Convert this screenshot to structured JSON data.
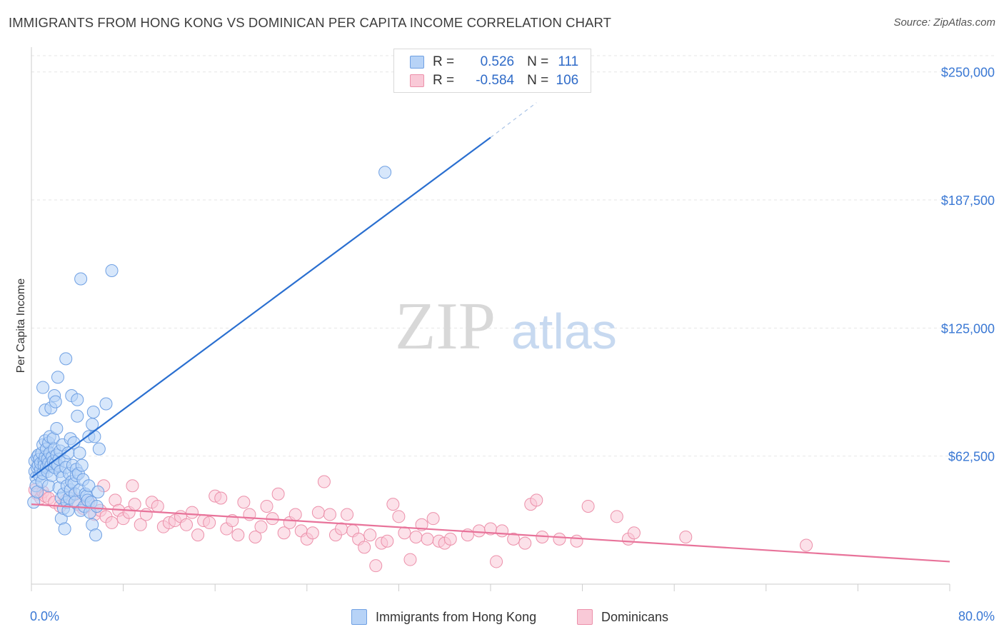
{
  "header": {
    "title": "IMMIGRANTS FROM HONG KONG VS DOMINICAN PER CAPITA INCOME CORRELATION CHART",
    "source": "Source: ZipAtlas.com"
  },
  "watermark": {
    "zip": "ZIP",
    "atlas": "atlas"
  },
  "legend": {
    "rows": [
      {
        "r_label": "R =",
        "r_value": "0.526",
        "n_label": "N =",
        "n_value": "111"
      },
      {
        "r_label": "R =",
        "r_value": "-0.584",
        "n_label": "N =",
        "n_value": "106"
      }
    ]
  },
  "bottom_legend": {
    "items": [
      {
        "label": "Immigrants from Hong Kong"
      },
      {
        "label": "Dominicans"
      }
    ]
  },
  "colors": {
    "blue_fill": "#b7d3f7",
    "blue_stroke": "#6fa0e3",
    "blue_line": "#2a6fd0",
    "pink_fill": "#f9c9d7",
    "pink_stroke": "#ec90aa",
    "pink_line": "#e8739a",
    "tick_label": "#3a78d4",
    "grid": "#e6e6e6"
  },
  "chart_data": {
    "type": "scatter",
    "title": "IMMIGRANTS FROM HONG KONG VS DOMINICAN PER CAPITA INCOME CORRELATION CHART",
    "xlabel": "",
    "ylabel": "Per Capita Income",
    "xlim": [
      0,
      80
    ],
    "ylim": [
      0,
      260000
    ],
    "x_tick_labels": [
      "0.0%",
      "80.0%"
    ],
    "y_ticks": [
      62500,
      125000,
      187500,
      250000
    ],
    "y_tick_labels": [
      "$62,500",
      "$125,000",
      "$187,500",
      "$250,000"
    ],
    "grid": true,
    "legend_placement": "top-center",
    "series": [
      {
        "name": "Immigrants from Hong Kong",
        "R": 0.526,
        "N": 111,
        "trend": {
          "x0": 0,
          "y0": 52000,
          "x1": 40,
          "y1": 218000,
          "dash_to_x": 44,
          "dash_to_y": 235000
        },
        "points": [
          [
            0.2,
            40000
          ],
          [
            0.3,
            55000
          ],
          [
            0.3,
            60000
          ],
          [
            0.4,
            52000
          ],
          [
            0.4,
            48000
          ],
          [
            0.5,
            62000
          ],
          [
            0.5,
            57000
          ],
          [
            0.5,
            45000
          ],
          [
            0.6,
            58000
          ],
          [
            0.6,
            63000
          ],
          [
            0.7,
            53000
          ],
          [
            0.7,
            61000
          ],
          [
            0.8,
            56000
          ],
          [
            0.8,
            59000
          ],
          [
            0.9,
            64000
          ],
          [
            0.9,
            50000
          ],
          [
            1.0,
            68000
          ],
          [
            1.0,
            54000
          ],
          [
            1.0,
            96000
          ],
          [
            1.1,
            60000
          ],
          [
            1.1,
            58000
          ],
          [
            1.2,
            70000
          ],
          [
            1.2,
            62000
          ],
          [
            1.2,
            85000
          ],
          [
            1.3,
            57000
          ],
          [
            1.3,
            66000
          ],
          [
            1.4,
            55000
          ],
          [
            1.4,
            61000
          ],
          [
            1.5,
            59000
          ],
          [
            1.5,
            69000
          ],
          [
            1.5,
            48000
          ],
          [
            1.6,
            64000
          ],
          [
            1.6,
            72000
          ],
          [
            1.7,
            58000
          ],
          [
            1.7,
            86000
          ],
          [
            1.8,
            62000
          ],
          [
            1.8,
            53000
          ],
          [
            1.9,
            60000
          ],
          [
            1.9,
            71000
          ],
          [
            2.0,
            57000
          ],
          [
            2.0,
            92000
          ],
          [
            2.0,
            66000
          ],
          [
            2.1,
            59000
          ],
          [
            2.1,
            89000
          ],
          [
            2.2,
            63000
          ],
          [
            2.2,
            76000
          ],
          [
            2.3,
            58000
          ],
          [
            2.3,
            101000
          ],
          [
            2.4,
            61000
          ],
          [
            2.4,
            47000
          ],
          [
            2.5,
            55000
          ],
          [
            2.5,
            65000
          ],
          [
            2.6,
            42000
          ],
          [
            2.6,
            32000
          ],
          [
            2.7,
            68000
          ],
          [
            2.7,
            52000
          ],
          [
            2.8,
            37000
          ],
          [
            2.8,
            44000
          ],
          [
            2.9,
            60000
          ],
          [
            2.9,
            27000
          ],
          [
            3.0,
            110000
          ],
          [
            3.0,
            57000
          ],
          [
            3.1,
            48000
          ],
          [
            3.1,
            40000
          ],
          [
            3.2,
            64000
          ],
          [
            3.2,
            36000
          ],
          [
            3.3,
            54000
          ],
          [
            3.3,
            42000
          ],
          [
            3.4,
            71000
          ],
          [
            3.4,
            46000
          ],
          [
            3.5,
            92000
          ],
          [
            3.5,
            50000
          ],
          [
            3.6,
            58000
          ],
          [
            3.7,
            49000
          ],
          [
            3.7,
            69000
          ],
          [
            3.8,
            44000
          ],
          [
            3.8,
            40000
          ],
          [
            3.9,
            56000
          ],
          [
            3.9,
            53000
          ],
          [
            4.0,
            90000
          ],
          [
            4.0,
            82000
          ],
          [
            4.1,
            54000
          ],
          [
            4.2,
            64000
          ],
          [
            4.2,
            46000
          ],
          [
            4.3,
            149000
          ],
          [
            4.3,
            36000
          ],
          [
            4.4,
            58000
          ],
          [
            4.5,
            51000
          ],
          [
            4.6,
            38000
          ],
          [
            4.7,
            44000
          ],
          [
            4.8,
            43000
          ],
          [
            4.9,
            41000
          ],
          [
            5.0,
            72000
          ],
          [
            5.0,
            48000
          ],
          [
            5.1,
            35000
          ],
          [
            5.2,
            40000
          ],
          [
            5.3,
            78000
          ],
          [
            5.3,
            29000
          ],
          [
            5.4,
            84000
          ],
          [
            5.5,
            72000
          ],
          [
            5.6,
            24000
          ],
          [
            5.7,
            38000
          ],
          [
            5.8,
            45000
          ],
          [
            5.9,
            66000
          ],
          [
            6.5,
            88000
          ],
          [
            7.0,
            153000
          ],
          [
            30.8,
            201000
          ]
        ]
      },
      {
        "name": "Dominicans",
        "R": -0.584,
        "N": 106,
        "trend": {
          "x0": 0,
          "y0": 39000,
          "x1": 80,
          "y1": 11000
        },
        "points": [
          [
            0.3,
            46000
          ],
          [
            0.5,
            44000
          ],
          [
            0.8,
            42000
          ],
          [
            1.0,
            45000
          ],
          [
            1.2,
            43000
          ],
          [
            1.5,
            42000
          ],
          [
            2.0,
            40000
          ],
          [
            2.5,
            38000
          ],
          [
            3.0,
            41000
          ],
          [
            3.5,
            43000
          ],
          [
            4.0,
            39000
          ],
          [
            4.5,
            37000
          ],
          [
            5.0,
            40000
          ],
          [
            5.5,
            34000
          ],
          [
            6.0,
            36000
          ],
          [
            6.3,
            48000
          ],
          [
            6.5,
            33000
          ],
          [
            7.0,
            30000
          ],
          [
            7.3,
            41000
          ],
          [
            7.6,
            36000
          ],
          [
            8.0,
            32000
          ],
          [
            8.5,
            35000
          ],
          [
            8.8,
            48000
          ],
          [
            9.0,
            39000
          ],
          [
            9.5,
            29000
          ],
          [
            10.0,
            34000
          ],
          [
            10.5,
            40000
          ],
          [
            11.0,
            38000
          ],
          [
            11.5,
            28000
          ],
          [
            12.0,
            30000
          ],
          [
            12.5,
            31000
          ],
          [
            13.0,
            33000
          ],
          [
            13.5,
            29000
          ],
          [
            14.0,
            35000
          ],
          [
            14.5,
            24000
          ],
          [
            15.0,
            31000
          ],
          [
            15.5,
            30000
          ],
          [
            16.0,
            43000
          ],
          [
            16.5,
            42000
          ],
          [
            17.0,
            27000
          ],
          [
            17.5,
            31000
          ],
          [
            18.0,
            24000
          ],
          [
            18.5,
            40000
          ],
          [
            19.0,
            34000
          ],
          [
            19.5,
            23000
          ],
          [
            20.0,
            28000
          ],
          [
            20.5,
            38000
          ],
          [
            21.0,
            32000
          ],
          [
            21.5,
            44000
          ],
          [
            22.0,
            25000
          ],
          [
            22.5,
            30000
          ],
          [
            23.0,
            34000
          ],
          [
            23.5,
            26000
          ],
          [
            24.0,
            22000
          ],
          [
            24.5,
            25000
          ],
          [
            25.0,
            35000
          ],
          [
            25.5,
            50000
          ],
          [
            26.0,
            34000
          ],
          [
            26.5,
            24000
          ],
          [
            27.0,
            27000
          ],
          [
            27.5,
            34000
          ],
          [
            28.0,
            26000
          ],
          [
            28.5,
            22000
          ],
          [
            29.0,
            18000
          ],
          [
            29.5,
            24000
          ],
          [
            30.0,
            9000
          ],
          [
            30.5,
            20000
          ],
          [
            31.0,
            21000
          ],
          [
            31.5,
            39000
          ],
          [
            32.0,
            33000
          ],
          [
            32.5,
            25000
          ],
          [
            33.0,
            12000
          ],
          [
            33.5,
            23000
          ],
          [
            34.0,
            29000
          ],
          [
            34.5,
            22000
          ],
          [
            35.0,
            32000
          ],
          [
            35.5,
            21000
          ],
          [
            36.0,
            20000
          ],
          [
            36.5,
            22000
          ],
          [
            38.0,
            24000
          ],
          [
            39.0,
            26000
          ],
          [
            40.0,
            27000
          ],
          [
            40.5,
            11000
          ],
          [
            41.0,
            26000
          ],
          [
            42.0,
            22000
          ],
          [
            43.0,
            20000
          ],
          [
            43.5,
            39000
          ],
          [
            44.0,
            41000
          ],
          [
            44.5,
            23000
          ],
          [
            46.0,
            22000
          ],
          [
            47.5,
            21000
          ],
          [
            48.5,
            38000
          ],
          [
            51.0,
            33000
          ],
          [
            52.0,
            22000
          ],
          [
            52.5,
            25000
          ],
          [
            57.0,
            23000
          ],
          [
            67.5,
            19000
          ]
        ]
      }
    ]
  }
}
